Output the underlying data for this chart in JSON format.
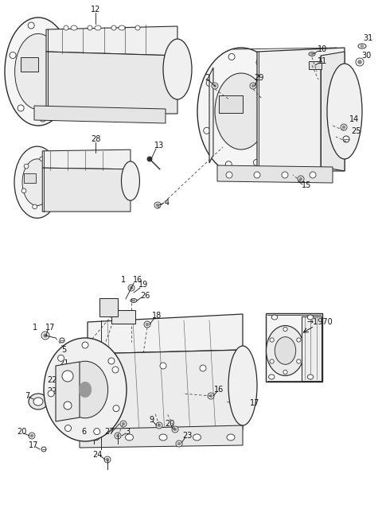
{
  "bg_color": "#ffffff",
  "fig_width": 4.8,
  "fig_height": 6.59,
  "dpi": 100,
  "parts_color": "#2a2a2a",
  "label_color": "#111111",
  "dash_color": "#444444",
  "label_fontsize": 7.0
}
